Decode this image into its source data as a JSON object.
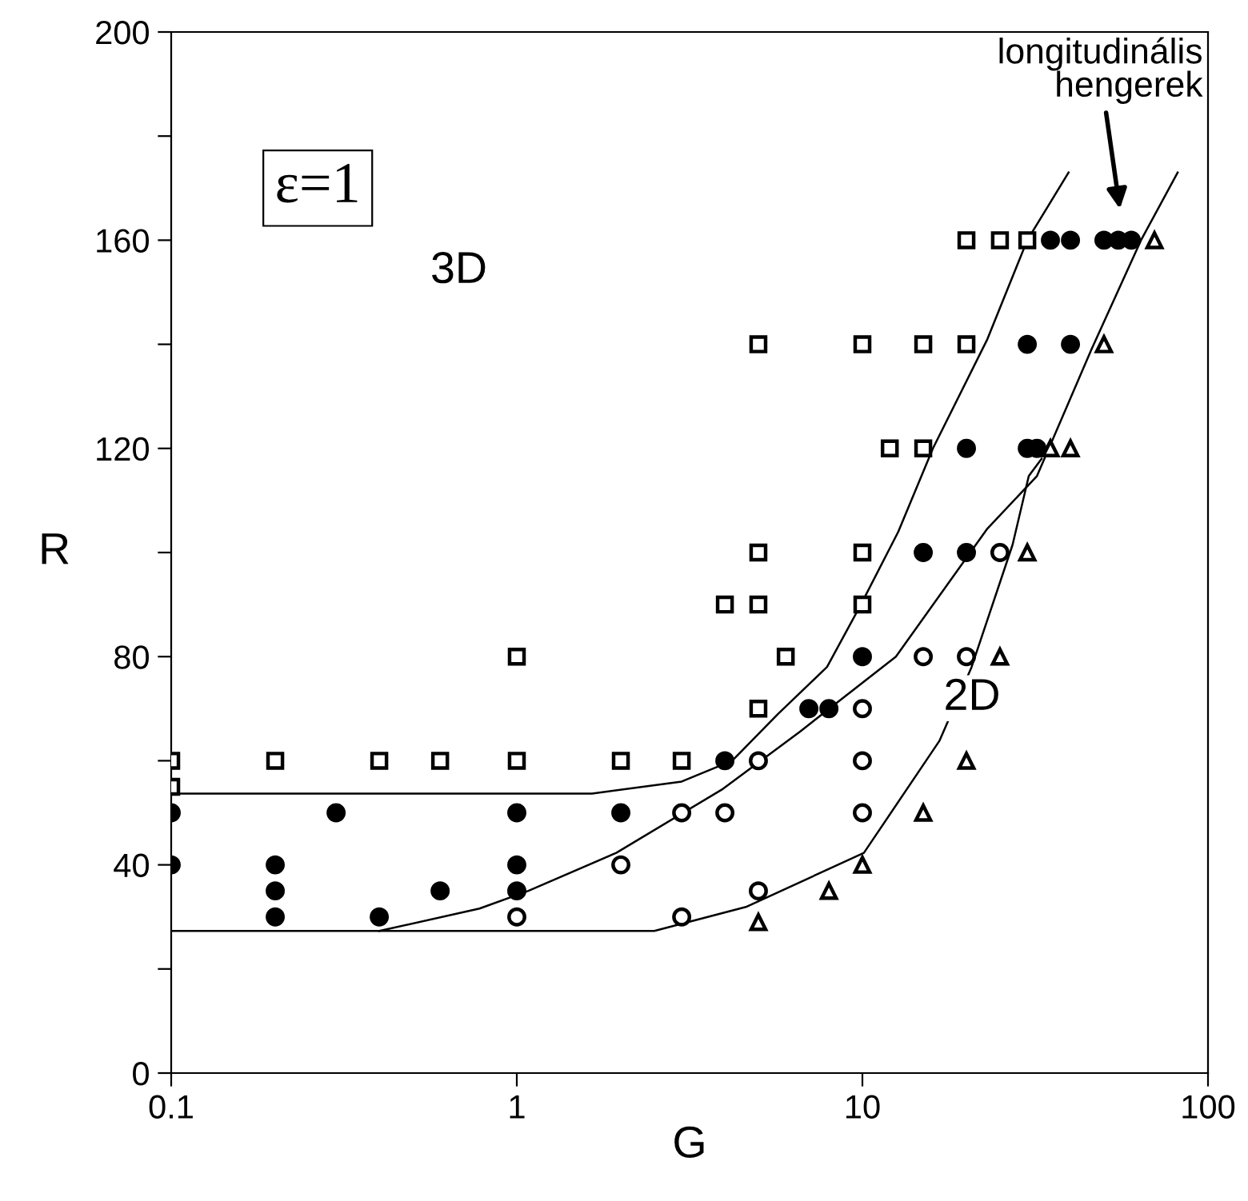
{
  "chart_data": {
    "type": "scatter",
    "xlabel": "G",
    "ylabel": "R",
    "log": "x",
    "xlim": [
      0.1,
      100
    ],
    "xticks": [
      0.1,
      1,
      10,
      100
    ],
    "ylim": [
      0,
      200
    ],
    "yticks": [
      0,
      {
        "value": 20,
        "label": null
      },
      40,
      {
        "value": 60,
        "label": null
      },
      80,
      {
        "value": 100,
        "label": null
      },
      120,
      {
        "value": 140,
        "label": null
      },
      160,
      {
        "value": 180,
        "label": null
      },
      200
    ],
    "grid": false,
    "legend": false,
    "annotations": [
      "ε=1",
      "3D",
      "2D",
      "longitudinális\nhengerek"
    ],
    "series": [
      {
        "marker": "square",
        "color": "#ffffff",
        "x": [
          0.1,
          0.1,
          0.2,
          0.4,
          0.6,
          1,
          1,
          2,
          3,
          4,
          5,
          5,
          5,
          5,
          6,
          10,
          10,
          10,
          12,
          15,
          15,
          20,
          20,
          25,
          30
        ],
        "values": [
          60,
          55,
          60,
          60,
          60,
          60,
          80,
          60,
          60,
          90,
          90,
          100,
          70,
          140,
          80,
          140,
          100,
          90,
          120,
          120,
          140,
          140,
          160,
          160,
          160
        ]
      },
      {
        "marker": "circle",
        "color": "#000000",
        "x": [
          0.1,
          0.1,
          0.2,
          0.2,
          0.2,
          0.3,
          0.4,
          0.6,
          1,
          1,
          1,
          2,
          4,
          7,
          8,
          10,
          15,
          20,
          20,
          30,
          32,
          30,
          40,
          35,
          40,
          50,
          55,
          60
        ],
        "values": [
          50,
          40,
          40,
          35,
          30,
          50,
          30,
          35,
          50,
          40,
          35,
          50,
          60,
          70,
          70,
          80,
          100,
          100,
          120,
          120,
          120,
          140,
          140,
          160,
          160,
          160,
          160,
          160
        ]
      },
      {
        "marker": "circle",
        "color": "#ffffff",
        "x": [
          1,
          2,
          3,
          3,
          4,
          5,
          5,
          10,
          10,
          10,
          15,
          20,
          25
        ],
        "values": [
          30,
          40,
          50,
          30,
          50,
          60,
          35,
          70,
          60,
          50,
          80,
          80,
          100
        ]
      },
      {
        "marker": "triangle",
        "color": "#ffffff",
        "x": [
          5,
          8,
          10,
          15,
          20,
          25,
          30,
          35,
          40,
          50,
          70
        ],
        "values": [
          29,
          35,
          40,
          50,
          60,
          80,
          100,
          120,
          120,
          140,
          160
        ]
      },
      {
        "type": "line",
        "marker": "none",
        "color": "#000000",
        "x": [
          0.1,
          1.65,
          3,
          4.2,
          5.7,
          7.9,
          9.9,
          12.7,
          16,
          23,
          30,
          39.5
        ],
        "values": [
          53.7,
          53.7,
          56,
          60,
          69,
          78,
          90,
          104,
          120,
          141,
          160,
          173
        ]
      },
      {
        "type": "line",
        "marker": "none",
        "color": "#000000",
        "x": [
          0.4,
          0.78,
          1.08,
          1.94,
          3.95,
          6.6,
          12.5,
          23,
          32,
          46,
          64,
          81.7
        ],
        "values": [
          27.3,
          31.6,
          35,
          42.3,
          54.6,
          65.6,
          80,
          104.6,
          114.7,
          139,
          160,
          173
        ]
      },
      {
        "type": "line",
        "marker": "none",
        "color": "#000000",
        "x": [
          0.1,
          2.5,
          4.6,
          10.1,
          16.7,
          20.7,
          27.2,
          30.3,
          33
        ],
        "values": [
          27.3,
          27.3,
          31.9,
          42.3,
          63.8,
          78,
          101.5,
          114.7,
          118
        ]
      }
    ]
  }
}
